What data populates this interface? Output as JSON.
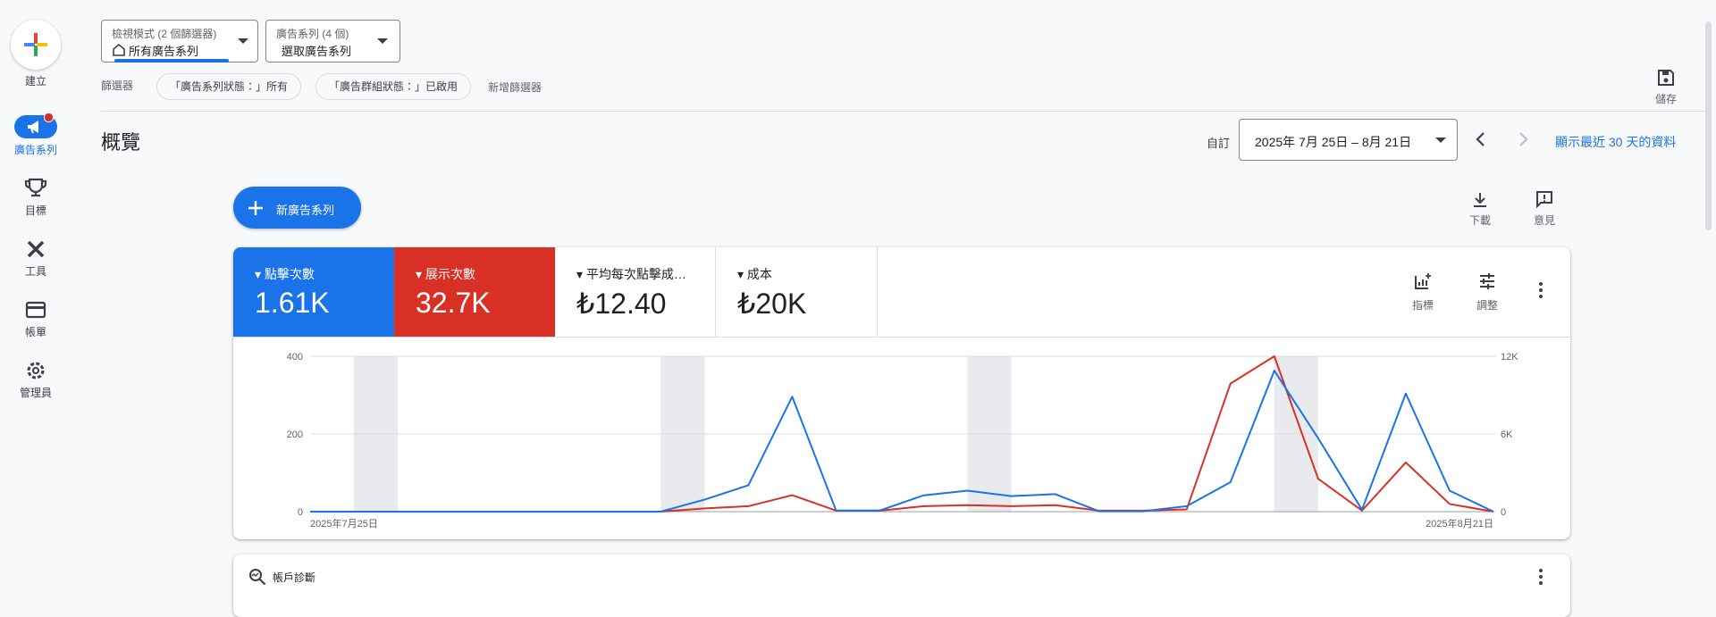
{
  "nav": {
    "create": "建立",
    "items": [
      "廣告系列",
      "目標",
      "工具",
      "帳單",
      "管理員"
    ]
  },
  "header": {
    "view_mode_label": "檢視模式 (2 個篩選器)",
    "view_mode_value": "所有廣告系列",
    "campaigns_label": "廣告系列 (4 個)",
    "campaigns_value": "選取廣告系列",
    "save": "儲存"
  },
  "filters": {
    "label": "篩選器",
    "chips": [
      "「廣告系列狀態：」所有",
      "「廣告群組狀態：」已啟用"
    ],
    "add": "新增篩選器"
  },
  "overview": {
    "title": "概覽",
    "range_label": "自訂",
    "date_range": "2025年 7月 25日 – 8月 21日",
    "recent_link": "顯示最近 30 天的資料",
    "new_campaign": "新廣告系列",
    "download": "下載",
    "feedback": "意見"
  },
  "metrics": [
    {
      "value": "1.61K"
    },
    {
      "value": "32.7K"
    },
    {
      "name": "平均每次點擊成…",
      "value": "₺12.40"
    },
    {
      "name": "成本",
      "value": "₺20K"
    }
  ],
  "metric_tools": {
    "metrics": "指標",
    "adjust": "調整"
  },
  "chart_data": {
    "type": "line",
    "categories": [
      "2025年7月25日",
      null,
      null,
      null,
      null,
      null,
      null,
      null,
      null,
      null,
      null,
      null,
      null,
      null,
      null,
      null,
      null,
      null,
      null,
      null,
      null,
      null,
      null,
      null,
      null,
      null,
      null,
      "2025年8月21日"
    ],
    "series": [
      {
        "name": "點擊次數",
        "color": "#1a73e8",
        "values": [
          0,
          0,
          0,
          0,
          0,
          0,
          0,
          0,
          0,
          31,
          68,
          296,
          3,
          3,
          42,
          54,
          40,
          45,
          1,
          1,
          14,
          76,
          363,
          189,
          5,
          304,
          54,
          0
        ]
      },
      {
        "name": "展示次數",
        "color": "#d93025",
        "axis": "y2",
        "values": [
          0,
          0,
          0,
          0,
          0,
          0,
          0,
          0,
          0,
          250,
          420,
          1270,
          80,
          80,
          420,
          500,
          420,
          500,
          80,
          80,
          170,
          9890,
          12000,
          2540,
          80,
          3800,
          590,
          0
        ]
      }
    ],
    "ylim": [
      0,
      400
    ],
    "yticks": [
      0,
      200,
      400
    ],
    "y2lim": [
      0,
      12000
    ],
    "y2ticks": [
      0,
      {
        "value": 6000,
        "label": "6K"
      },
      {
        "value": 12000,
        "label": "12K"
      }
    ],
    "grid": true
  },
  "diagnostics": {
    "title": "帳戶診斷"
  }
}
